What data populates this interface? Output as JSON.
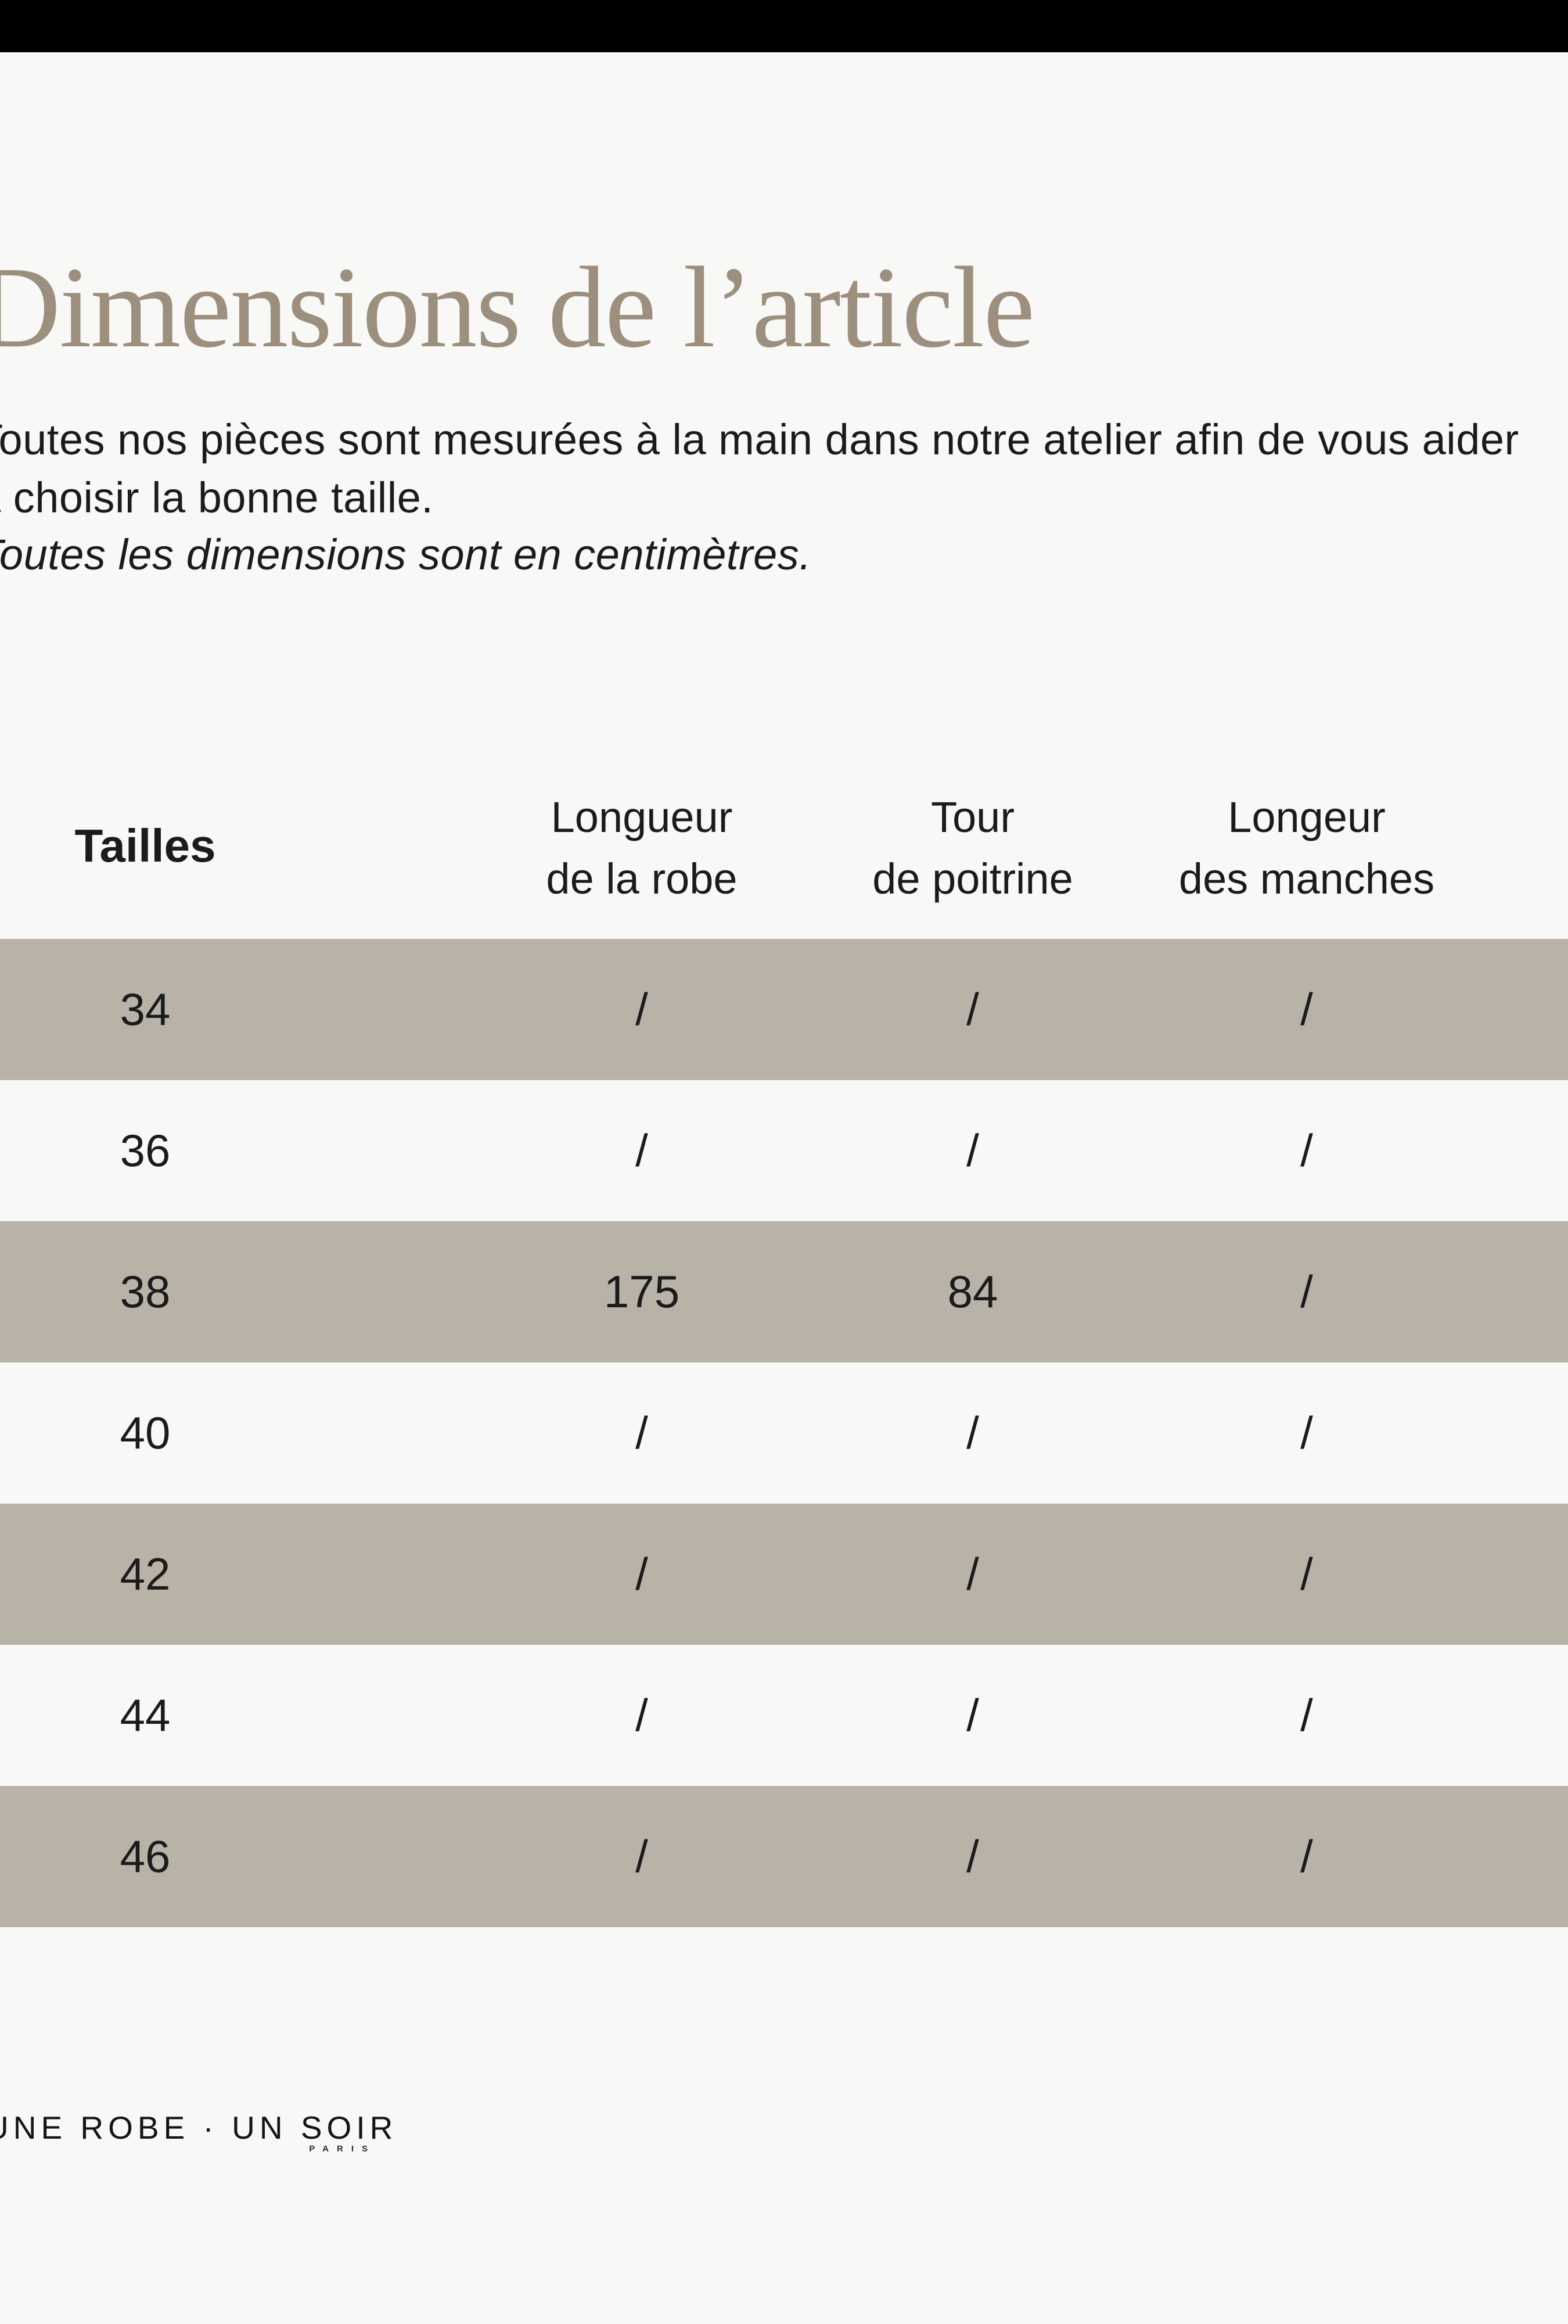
{
  "page": {
    "title": "Dimensions de l’article",
    "description_lines": [
      "Toutes nos pièces sont mesurées à la main dans notre atelier afin de vous aider",
      "à choisir la bonne taille."
    ],
    "note": "Toutes les dimensions sont en centimètres."
  },
  "table": {
    "headers": {
      "sizes": "Tailles",
      "columns": [
        {
          "line1": "Longueur",
          "line2": "de la robe"
        },
        {
          "line1": "Tour",
          "line2": "de poitrine"
        },
        {
          "line1": "Longeur",
          "line2": "des manches"
        }
      ]
    },
    "rows": [
      {
        "size": "34",
        "values": [
          "/",
          "/",
          "/"
        ]
      },
      {
        "size": "36",
        "values": [
          "/",
          "/",
          "/"
        ]
      },
      {
        "size": "38",
        "values": [
          "175",
          "84",
          "/"
        ]
      },
      {
        "size": "40",
        "values": [
          "/",
          "/",
          "/"
        ]
      },
      {
        "size": "42",
        "values": [
          "/",
          "/",
          "/"
        ]
      },
      {
        "size": "44",
        "values": [
          "/",
          "/",
          "/"
        ]
      },
      {
        "size": "46",
        "values": [
          "/",
          "/",
          "/"
        ]
      }
    ]
  },
  "footer": {
    "brand": "UNE ROBE · UN SOIR",
    "city": "PARIS"
  },
  "colors": {
    "top_bar": "#000000",
    "background": "#f8f8f7",
    "row_stripe": "#b8b2a7",
    "title_color": "#9c8f7d",
    "text": "#1b1b1b"
  }
}
